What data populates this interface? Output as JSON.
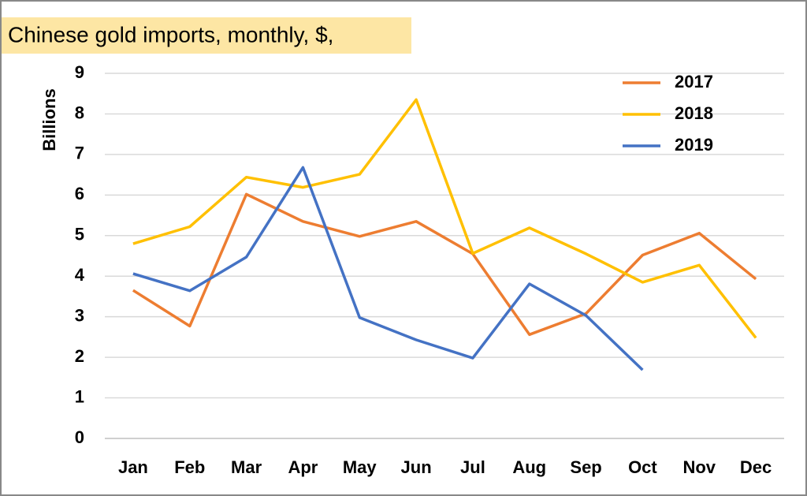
{
  "chart_data": {
    "type": "line",
    "title": "Chinese gold imports, monthly, $,",
    "y_label": "Billions",
    "categories": [
      "Jan",
      "Feb",
      "Mar",
      "Apr",
      "May",
      "Jun",
      "Jul",
      "Aug",
      "Sep",
      "Oct",
      "Nov",
      "Dec"
    ],
    "series": [
      {
        "name": "2017",
        "color": "#ed7d31",
        "values": [
          3.65,
          2.77,
          6.02,
          5.35,
          4.98,
          5.35,
          4.55,
          2.56,
          3.08,
          4.52,
          5.06,
          3.93
        ]
      },
      {
        "name": "2018",
        "color": "#ffc000",
        "values": [
          4.8,
          5.22,
          6.44,
          6.19,
          6.51,
          8.35,
          4.56,
          5.19,
          4.55,
          3.85,
          4.27,
          2.48
        ]
      },
      {
        "name": "2019",
        "color": "#4472c4",
        "values": [
          4.06,
          3.64,
          4.47,
          6.68,
          2.98,
          2.43,
          1.98,
          3.81,
          3.03,
          1.69,
          null,
          null
        ]
      }
    ],
    "ylim": [
      0,
      9
    ],
    "yticks": [
      0,
      1,
      2,
      3,
      4,
      5,
      6,
      7,
      8,
      9
    ],
    "grid": true,
    "legend": "top-right"
  }
}
